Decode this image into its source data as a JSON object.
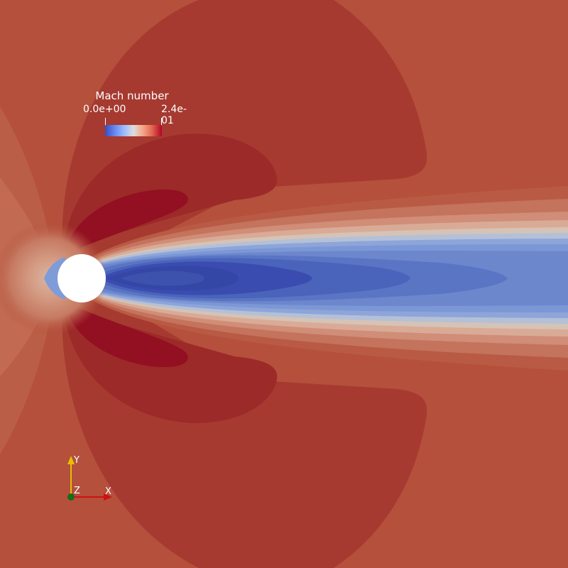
{
  "colorbar": {
    "title": "Mach number",
    "min_label": "0.0e+00",
    "max_label": "2.4e-01",
    "colors": [
      "#3b4cc0",
      "#6788ee",
      "#9abbff",
      "#dddcdc",
      "#f6a385",
      "#e0654f",
      "#b40426"
    ]
  },
  "axes": {
    "x_label": "X",
    "y_label": "Y",
    "z_label": "Z",
    "x_color": "#d01010",
    "y_color": "#e8c000",
    "z_color": "#1a6b1a"
  },
  "field": {
    "background_color": "#b4503c",
    "cylinder_color": "#ffffff"
  }
}
